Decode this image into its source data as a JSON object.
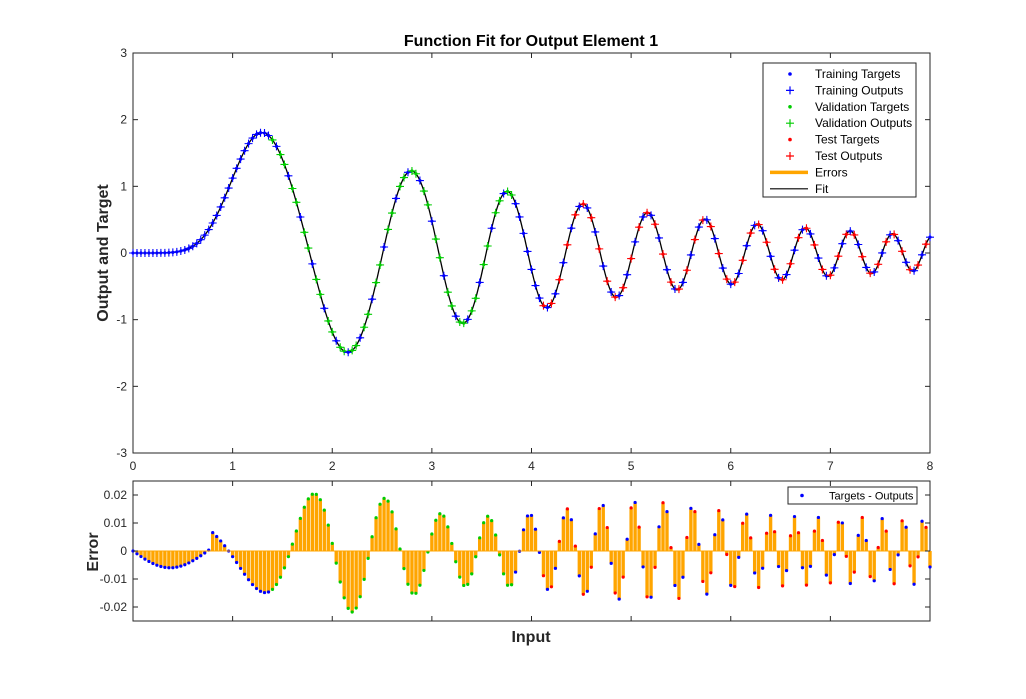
{
  "colors": {
    "training": "#0000ff",
    "validation": "#00cc00",
    "test": "#ff0000",
    "errors": "#ffa500",
    "fit": "#000000"
  },
  "chart_data": [
    {
      "type": "line",
      "title": "Function Fit for Output Element 1",
      "xlabel": "",
      "ylabel": "Output and Target",
      "xlim": [
        0,
        8
      ],
      "ylim": [
        -3,
        3
      ],
      "xticks": [
        "0",
        "1",
        "2",
        "3",
        "4",
        "5",
        "6",
        "7",
        "8"
      ],
      "yticks": [
        "-3",
        "-2",
        "-1",
        "0",
        "1",
        "2",
        "3"
      ],
      "x_range": [
        0,
        8
      ],
      "function": "y = sin(x^2) * exp(-0.3*x) * 2.85*(1-exp(-x^4))",
      "sample_step": 0.04,
      "validation_range": [
        1.4,
        3.8
      ],
      "test_range": [
        4.05,
        8.0
      ],
      "legend_position": "top-right",
      "legend": [
        {
          "label": "Training Targets",
          "marker": "dot",
          "color_key": "training"
        },
        {
          "label": "Training Outputs",
          "marker": "plus",
          "color_key": "training"
        },
        {
          "label": "Validation Targets",
          "marker": "dot",
          "color_key": "validation"
        },
        {
          "label": "Validation Outputs",
          "marker": "plus",
          "color_key": "validation"
        },
        {
          "label": "Test Targets",
          "marker": "dot",
          "color_key": "test"
        },
        {
          "label": "Test Outputs",
          "marker": "plus",
          "color_key": "test"
        },
        {
          "label": "Errors",
          "marker": "thick-line",
          "color_key": "errors"
        },
        {
          "label": "Fit",
          "marker": "line",
          "color_key": "fit"
        }
      ]
    },
    {
      "type": "bar",
      "title": "",
      "xlabel": "Input",
      "ylabel": "Error",
      "xlim": [
        0,
        8
      ],
      "ylim": [
        -0.025,
        0.025
      ],
      "yticks": [
        "-0.02",
        "-0.01",
        "0",
        "0.01",
        "0.02"
      ],
      "legend_position": "top-right",
      "legend": [
        {
          "label": "Targets - Outputs",
          "marker": "dot",
          "color_key": "training"
        }
      ]
    }
  ]
}
